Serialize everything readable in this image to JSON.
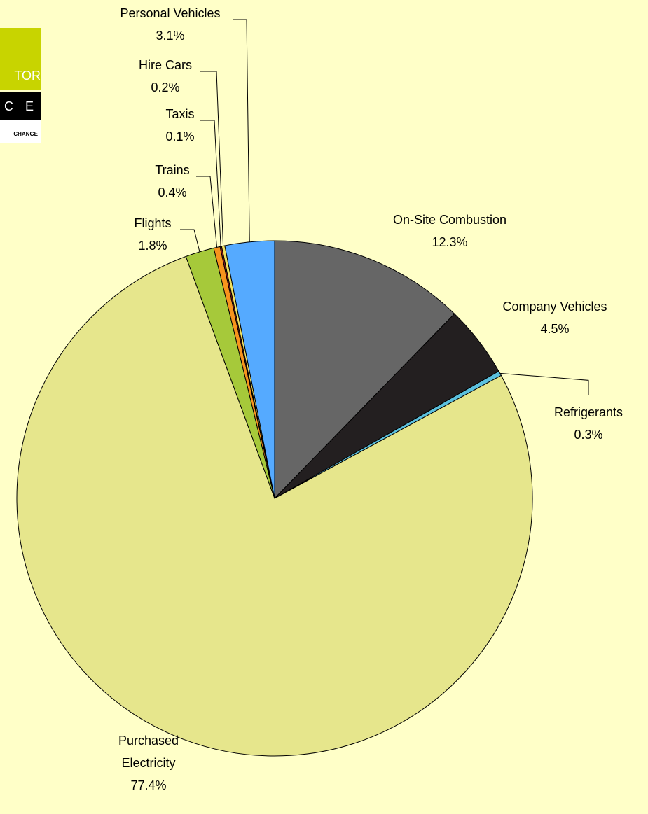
{
  "logo": {
    "line1": "TOR",
    "line2": "C E",
    "line3": "CHANGE"
  },
  "chart_data": {
    "type": "pie",
    "categories": [
      "On-Site Combustion",
      "Company Vehicles",
      "Refrigerants",
      "Purchased Electricity",
      "Flights",
      "Trains",
      "Taxis",
      "Hire Cars",
      "Personal Vehicles"
    ],
    "values": [
      12.3,
      4.5,
      0.3,
      77.4,
      1.8,
      0.4,
      0.1,
      0.2,
      3.1
    ],
    "value_labels": [
      "12.3%",
      "4.5%",
      "0.3%",
      "77.4%",
      "1.8%",
      "0.4%",
      "0.1%",
      "0.2%",
      "3.1%"
    ],
    "colors": [
      "#666666",
      "#231f20",
      "#5bc0de",
      "#e6e68c",
      "#a6c93a",
      "#f7941d",
      "#8b1a1a",
      "#f0e060",
      "#55aaff"
    ]
  }
}
